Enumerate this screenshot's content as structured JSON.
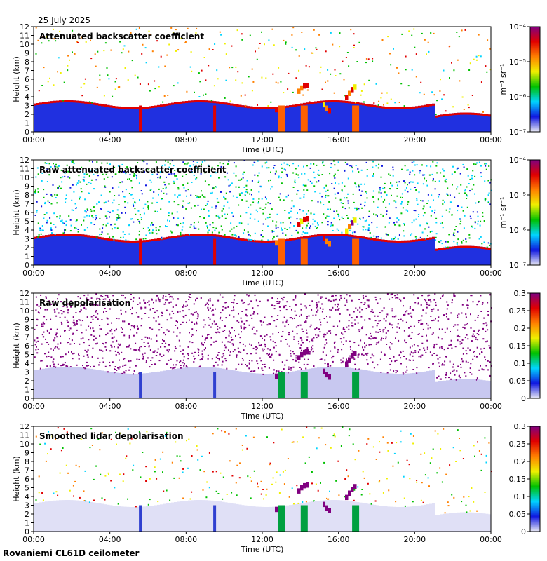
{
  "header": {
    "date": "25 July 2025"
  },
  "footer": {
    "instrument": "Rovaniemi CL61D ceilometer"
  },
  "colors": {
    "colormap": [
      "#e8e8f4",
      "#1018e0",
      "#00d4ff",
      "#00c000",
      "#f0f000",
      "#ff8000",
      "#e00000",
      "#800080"
    ],
    "background": "#ffffff"
  },
  "chart_data": [
    {
      "type": "heatmap",
      "title": "Attenuated backscatter coefficient",
      "xlabel": "Time (UTC)",
      "ylabel": "Height (km)",
      "xticks": [
        "00:00",
        "04:00",
        "08:00",
        "12:00",
        "16:00",
        "20:00",
        "00:00"
      ],
      "yticks": [
        "0",
        "1",
        "2",
        "3",
        "4",
        "5",
        "6",
        "7",
        "8",
        "9",
        "10",
        "11",
        "12"
      ],
      "xlim": [
        0,
        24
      ],
      "ylim": [
        0,
        12
      ],
      "colorbar": {
        "scale": "log",
        "range": [
          1e-07,
          0.0001
        ],
        "ticks": [
          "10⁻⁷",
          "10⁻⁶",
          "10⁻⁵",
          "10⁻⁴"
        ],
        "label": "m⁻¹ sr⁻¹"
      }
    },
    {
      "type": "heatmap",
      "title": "Raw attenuated backscatter coefficient",
      "xlabel": "Time (UTC)",
      "ylabel": "Height (km)",
      "xticks": [
        "00:00",
        "04:00",
        "08:00",
        "12:00",
        "16:00",
        "20:00",
        "00:00"
      ],
      "yticks": [
        "0",
        "1",
        "2",
        "3",
        "4",
        "5",
        "6",
        "7",
        "8",
        "9",
        "10",
        "11",
        "12"
      ],
      "xlim": [
        0,
        24
      ],
      "ylim": [
        0,
        12
      ],
      "colorbar": {
        "scale": "log",
        "range": [
          1e-07,
          0.0001
        ],
        "ticks": [
          "10⁻⁷",
          "10⁻⁶",
          "10⁻⁵",
          "10⁻⁴"
        ],
        "label": "m⁻¹ sr⁻¹"
      }
    },
    {
      "type": "heatmap",
      "title": "Raw depolarisation",
      "xlabel": "Time (UTC)",
      "ylabel": "Height (km)",
      "xticks": [
        "00:00",
        "04:00",
        "08:00",
        "12:00",
        "16:00",
        "20:00",
        "00:00"
      ],
      "yticks": [
        "0",
        "1",
        "2",
        "3",
        "4",
        "5",
        "6",
        "7",
        "8",
        "9",
        "10",
        "11",
        "12"
      ],
      "xlim": [
        0,
        24
      ],
      "ylim": [
        0,
        12
      ],
      "colorbar": {
        "scale": "linear",
        "range": [
          0,
          0.3
        ],
        "ticks": [
          "0",
          "0.05",
          "0.1",
          "0.15",
          "0.2",
          "0.25",
          "0.3"
        ],
        "label": ""
      }
    },
    {
      "type": "heatmap",
      "title": "Smoothed lidar depolarisation",
      "xlabel": "Time (UTC)",
      "ylabel": "Height (km)",
      "xticks": [
        "00:00",
        "04:00",
        "08:00",
        "12:00",
        "16:00",
        "20:00",
        "00:00"
      ],
      "yticks": [
        "0",
        "1",
        "2",
        "3",
        "4",
        "5",
        "6",
        "7",
        "8",
        "9",
        "10",
        "11",
        "12"
      ],
      "xlim": [
        0,
        24
      ],
      "ylim": [
        0,
        12
      ],
      "colorbar": {
        "scale": "linear",
        "range": [
          0,
          0.3
        ],
        "ticks": [
          "0",
          "0.05",
          "0.1",
          "0.15",
          "0.2",
          "0.25",
          "0.3"
        ],
        "label": ""
      }
    }
  ]
}
